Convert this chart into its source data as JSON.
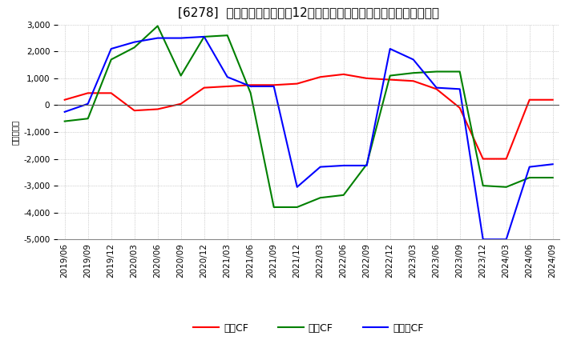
{
  "title": "[6278]  キャッシュフローの12か月移動合計の対前年同期増減額の推移",
  "ylabel": "（百万円）",
  "background_color": "#ffffff",
  "plot_bg_color": "#ffffff",
  "grid_color": "#aaaaaa",
  "ylim": [
    -5000,
    3000
  ],
  "yticks": [
    -5000,
    -4000,
    -3000,
    -2000,
    -1000,
    0,
    1000,
    2000,
    3000
  ],
  "x_labels": [
    "2019/06",
    "2019/09",
    "2019/12",
    "2020/03",
    "2020/06",
    "2020/09",
    "2020/12",
    "2021/03",
    "2021/06",
    "2021/09",
    "2021/12",
    "2022/03",
    "2022/06",
    "2022/09",
    "2022/12",
    "2023/03",
    "2023/06",
    "2023/09",
    "2023/12",
    "2024/03",
    "2024/06",
    "2024/09"
  ],
  "operating_cf": [
    200,
    450,
    450,
    -200,
    -150,
    50,
    650,
    700,
    750,
    750,
    800,
    1050,
    1150,
    1000,
    950,
    900,
    600,
    -100,
    -2000,
    -2000,
    200,
    200
  ],
  "investing_cf": [
    -600,
    -500,
    1700,
    2150,
    2950,
    1100,
    2550,
    2600,
    450,
    -3800,
    -3800,
    -3450,
    -3350,
    -2200,
    1100,
    1200,
    1250,
    1250,
    -3000,
    -3050,
    -2700,
    -2700
  ],
  "free_cf": [
    -250,
    50,
    2100,
    2350,
    2500,
    2500,
    2550,
    1050,
    700,
    700,
    -3050,
    -2300,
    -2250,
    -2250,
    2100,
    1700,
    650,
    600,
    -5000,
    -5000,
    -2300,
    -2200
  ],
  "line_colors": {
    "operating": "#ff0000",
    "investing": "#008000",
    "free": "#0000ff"
  },
  "legend_labels": {
    "operating": "営業CF",
    "investing": "投資CF",
    "free": "フリーCF"
  },
  "title_fontsize": 11,
  "tick_fontsize": 7.5,
  "legend_fontsize": 9
}
